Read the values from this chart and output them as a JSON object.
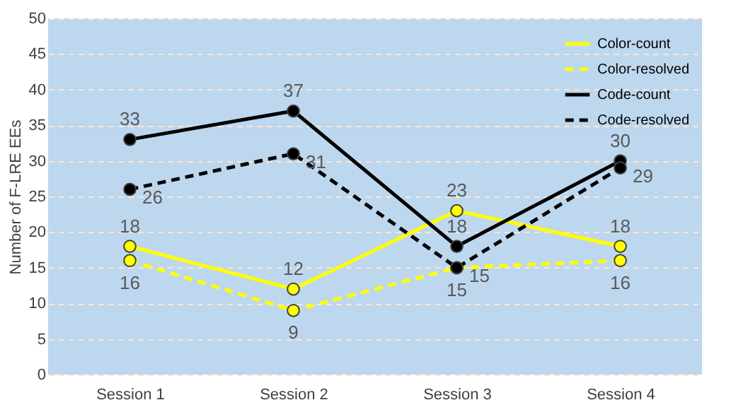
{
  "chart_data": {
    "type": "line",
    "ylabel": "Number of F-LRE EEs",
    "categories": [
      "Session 1",
      "Session 2",
      "Session 3",
      "Session 4"
    ],
    "series": [
      {
        "name": "Color-count",
        "color": "#ffff00",
        "line_style": "solid",
        "values": [
          18,
          12,
          23,
          18
        ]
      },
      {
        "name": "Color-resolved",
        "color": "#ffff00",
        "line_style": "dashed",
        "values": [
          16,
          9,
          15,
          16
        ]
      },
      {
        "name": "Code-count",
        "color": "#000000",
        "line_style": "solid",
        "values": [
          33,
          37,
          18,
          30
        ]
      },
      {
        "name": "Code-resolved",
        "color": "#000000",
        "line_style": "dashed",
        "values": [
          26,
          31,
          15,
          29
        ]
      }
    ],
    "ylim": [
      0,
      50
    ],
    "yticks": [
      0,
      5,
      10,
      15,
      20,
      25,
      30,
      35,
      40,
      45,
      50
    ],
    "grid": "y",
    "legend": "top right",
    "marker": "circle",
    "data_labels": true
  }
}
